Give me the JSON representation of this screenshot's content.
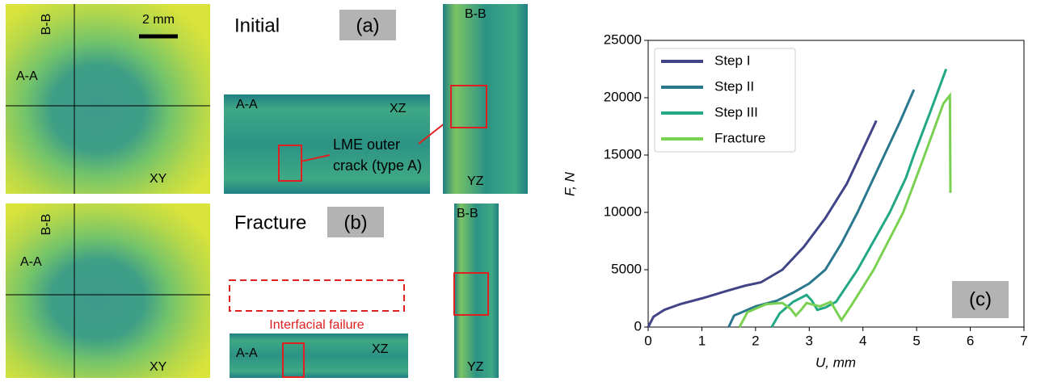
{
  "panels": {
    "scale_bar": "2 mm",
    "initial": "Initial",
    "label_a": "(a)",
    "fracture": "Fracture",
    "label_b": "(b)",
    "xy_top": {
      "bb": "B-B",
      "aa": "A-A",
      "plane": "XY"
    },
    "xy_bottom": {
      "bb": "B-B",
      "aa": "A-A",
      "plane": "XY"
    },
    "xz_top": {
      "section": "A-A",
      "plane": "XZ",
      "crack_line1": "LME outer",
      "crack_line2": "crack (type A)"
    },
    "yz_top": {
      "section": "B-B",
      "plane": "YZ"
    },
    "xz_bottom": {
      "section": "A-A",
      "plane": "XZ",
      "failure": "Interfacial failure"
    },
    "yz_bottom": {
      "section": "B-B",
      "plane": "YZ"
    }
  },
  "chart_data": {
    "type": "line",
    "panel_label": "(c)",
    "xlabel": "U, mm",
    "ylabel": "F, N",
    "xlim": [
      0,
      7
    ],
    "xticks": [
      0,
      1,
      2,
      3,
      4,
      5,
      6,
      7
    ],
    "ylim": [
      0,
      25000
    ],
    "yticks": [
      0,
      5000,
      10000,
      15000,
      20000,
      25000
    ],
    "legend": "upper left",
    "series": [
      {
        "name": "Step I",
        "color": "#414487",
        "x": [
          0,
          0.1,
          0.3,
          0.6,
          1.0,
          1.5,
          1.8,
          2.1,
          2.5,
          2.9,
          3.3,
          3.7,
          4.0,
          4.25
        ],
        "values": [
          0,
          900,
          1500,
          2000,
          2500,
          3200,
          3600,
          3900,
          5000,
          7000,
          9500,
          12500,
          15500,
          18000
        ]
      },
      {
        "name": "Step II",
        "color": "#2a788e",
        "x": [
          1.5,
          1.6,
          2.0,
          2.4,
          2.7,
          3.0,
          3.3,
          3.6,
          3.9,
          4.2,
          4.4,
          4.7,
          4.95
        ],
        "values": [
          0,
          1000,
          1800,
          2300,
          3000,
          3800,
          5000,
          7300,
          10000,
          13000,
          15000,
          18000,
          20700
        ]
      },
      {
        "name": "Step III",
        "color": "#22a884",
        "x": [
          2.3,
          2.45,
          2.7,
          2.95,
          3.05,
          3.15,
          3.3,
          3.5,
          3.9,
          4.2,
          4.5,
          4.8,
          4.95,
          5.25,
          5.55
        ],
        "values": [
          0,
          1200,
          2200,
          2800,
          2300,
          1500,
          1700,
          2200,
          5000,
          7500,
          10000,
          13000,
          15000,
          18700,
          22500
        ]
      },
      {
        "name": "Fracture",
        "color": "#7ad151",
        "x": [
          1.7,
          1.85,
          2.2,
          2.5,
          2.65,
          2.75,
          2.85,
          2.95,
          3.2,
          3.4,
          3.5,
          3.6,
          3.8,
          4.2,
          4.75,
          5.15,
          5.5,
          5.62,
          5.63
        ],
        "values": [
          0,
          1300,
          2000,
          2100,
          1600,
          1000,
          1500,
          2100,
          1800,
          2200,
          1400,
          600,
          2000,
          5000,
          10000,
          15000,
          19500,
          20200,
          11700
        ]
      }
    ]
  }
}
